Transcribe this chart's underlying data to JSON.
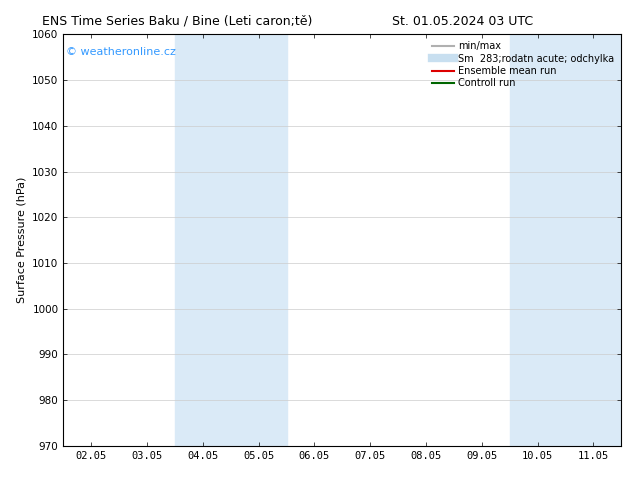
{
  "title_left": "ENS Time Series Baku / Bine (Leti caron;tě)",
  "title_right": "St. 01.05.2024 03 UTC",
  "ylabel": "Surface Pressure (hPa)",
  "ylim": [
    970,
    1060
  ],
  "yticks": [
    970,
    980,
    990,
    1000,
    1010,
    1020,
    1030,
    1040,
    1050,
    1060
  ],
  "xtick_labels": [
    "02.05",
    "03.05",
    "04.05",
    "05.05",
    "06.05",
    "07.05",
    "08.05",
    "09.05",
    "10.05",
    "11.05"
  ],
  "xtick_positions": [
    0,
    1,
    2,
    3,
    4,
    5,
    6,
    7,
    8,
    9
  ],
  "xlim": [
    -0.5,
    9.5
  ],
  "shaded_bands": [
    {
      "xmin": 1.5,
      "xmax": 3.5,
      "color": "#daeaf7"
    },
    {
      "xmin": 7.5,
      "xmax": 9.5,
      "color": "#daeaf7"
    }
  ],
  "watermark_text": "© weatheronline.cz",
  "watermark_color": "#3399ff",
  "legend_entries": [
    {
      "label": "min/max",
      "color": "#b0b0b0",
      "lw": 1.5,
      "ls": "solid"
    },
    {
      "label": "Sm  283;rodatn acute; odchylka",
      "color": "#c8dff0",
      "lw": 6,
      "ls": "solid"
    },
    {
      "label": "Ensemble mean run",
      "color": "#dd0000",
      "lw": 1.5,
      "ls": "solid"
    },
    {
      "label": "Controll run",
      "color": "#006600",
      "lw": 1.5,
      "ls": "solid"
    }
  ],
  "background_color": "#ffffff",
  "grid_color": "#cccccc",
  "title_fontsize": 9,
  "axis_fontsize": 8,
  "tick_fontsize": 7.5,
  "legend_fontsize": 7,
  "watermark_fontsize": 8
}
